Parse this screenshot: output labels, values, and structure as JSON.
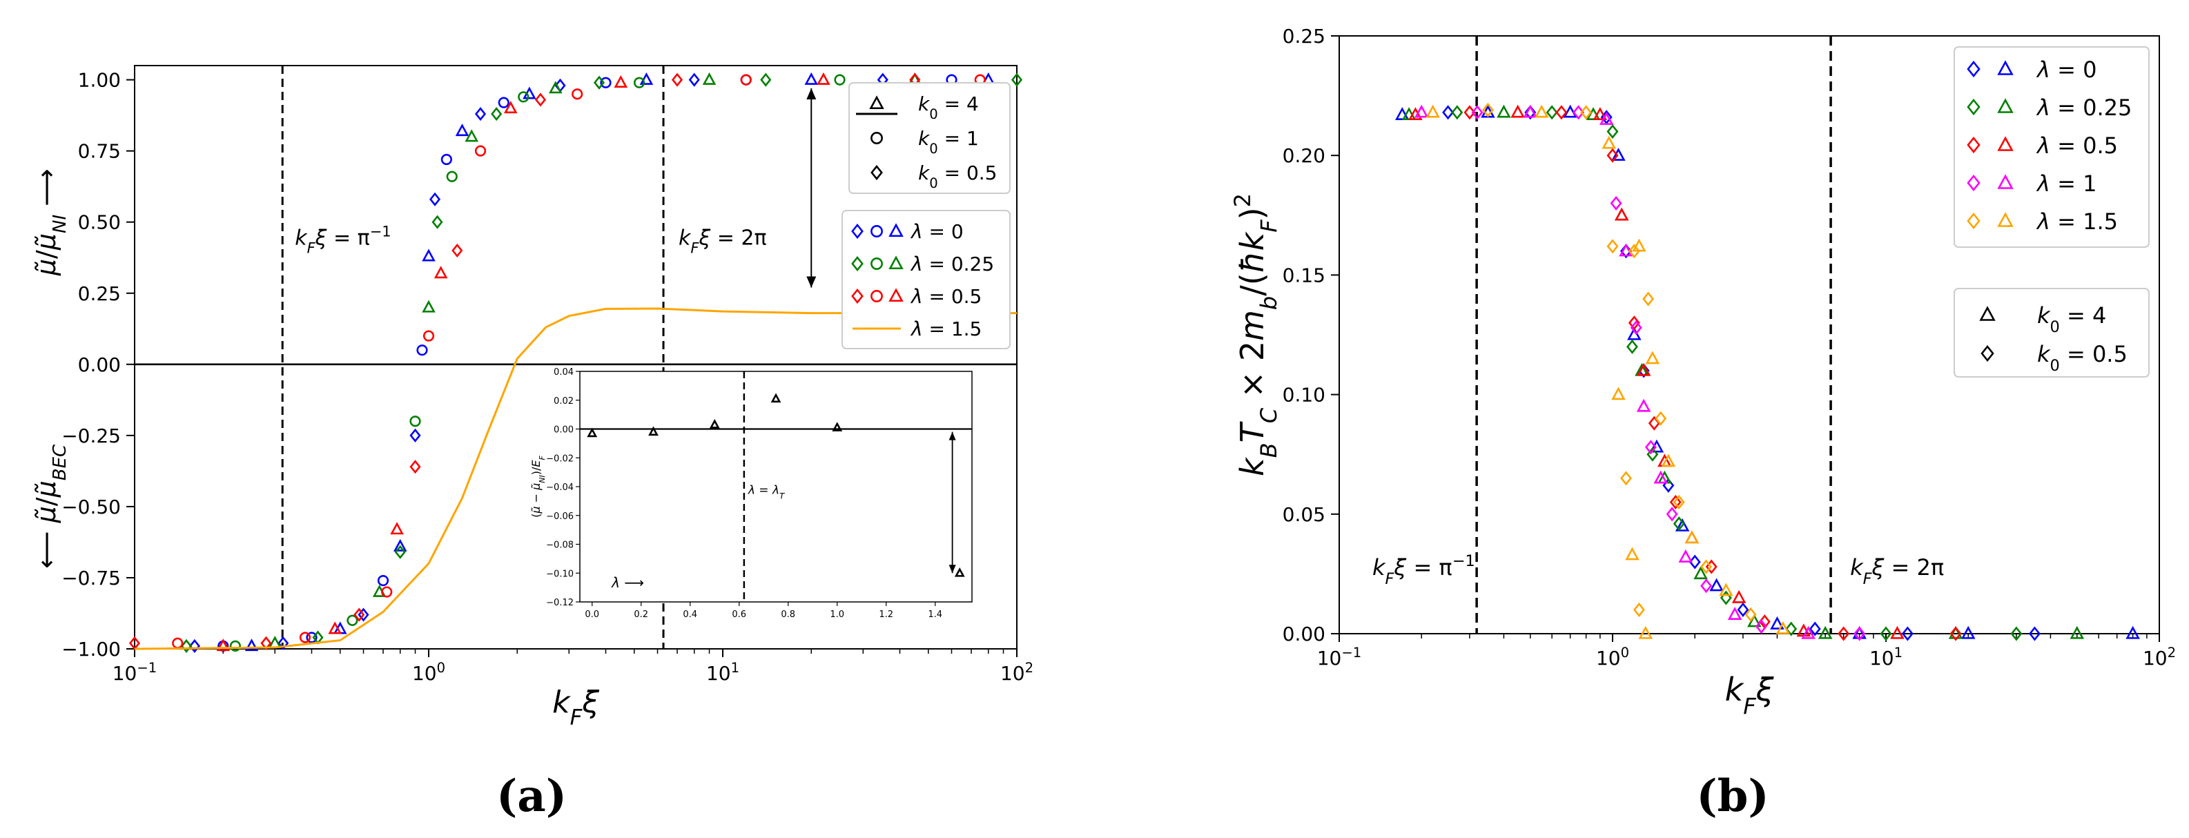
{
  "figure": {
    "panel_a_caption": "(a)",
    "panel_b_caption": "(b)"
  },
  "chart_data": [
    {
      "id": "panel_a",
      "type": "scatter",
      "x_scale": "log",
      "xlim": [
        0.1,
        100
      ],
      "ylim": [
        -1.0,
        1.05
      ],
      "xlabel": "k_F ξ",
      "ylabel_upper": "μ̃/μ̃_NI ⟶",
      "ylabel_lower": "⟵ μ̃/μ̃_BEC",
      "xticks": [
        {
          "v": 0.1,
          "base": "10",
          "exp": "−1"
        },
        {
          "v": 1,
          "base": "10",
          "exp": "0"
        },
        {
          "v": 10,
          "base": "10",
          "exp": "1"
        },
        {
          "v": 100,
          "base": "10",
          "exp": "2"
        }
      ],
      "yticks": [
        -1.0,
        -0.75,
        -0.5,
        -0.25,
        0.0,
        0.25,
        0.5,
        0.75,
        1.0
      ],
      "ytick_labels": [
        "−1.00",
        "−0.75",
        "−0.50",
        "−0.25",
        "0.00",
        "0.25",
        "0.50",
        "0.75",
        "1.00"
      ],
      "vlines": [
        {
          "x": 0.3183,
          "label": "k_F ξ = π⁻¹"
        },
        {
          "x": 6.283,
          "label": "k_F ξ = 2π"
        }
      ],
      "hline": 0.0,
      "arrow": {
        "x": 20,
        "y_top": 0.97,
        "y_bottom": 0.27
      },
      "legend_markers": [
        {
          "marker": "triangle",
          "label": "k₀ = 4"
        },
        {
          "marker": "circle",
          "label": "k₀ = 1"
        },
        {
          "marker": "diamond",
          "label": "k₀ = 0.5"
        }
      ],
      "series": [
        {
          "name": "λ = 0",
          "color": "#0000ff",
          "style": "markers",
          "points": [
            [
              0.16,
              -0.99
            ],
            [
              0.2,
              -0.99
            ],
            [
              0.25,
              -0.99
            ],
            [
              0.32,
              -0.98
            ],
            [
              0.4,
              -0.96
            ],
            [
              0.5,
              -0.93
            ],
            [
              0.6,
              -0.88
            ],
            [
              0.7,
              -0.76
            ],
            [
              0.8,
              -0.64
            ],
            [
              0.9,
              -0.25
            ],
            [
              0.95,
              0.05
            ],
            [
              1.0,
              0.38
            ],
            [
              1.05,
              0.58
            ],
            [
              1.15,
              0.72
            ],
            [
              1.3,
              0.82
            ],
            [
              1.5,
              0.88
            ],
            [
              1.8,
              0.92
            ],
            [
              2.2,
              0.95
            ],
            [
              2.8,
              0.98
            ],
            [
              4.0,
              0.99
            ],
            [
              5.5,
              1.0
            ],
            [
              8.0,
              1.0
            ],
            [
              12,
              1.0
            ],
            [
              20,
              1.0
            ],
            [
              35,
              1.0
            ],
            [
              60,
              1.0
            ],
            [
              80,
              1.0
            ]
          ]
        },
        {
          "name": "λ = 0.25",
          "color": "#008000",
          "style": "markers",
          "points": [
            [
              0.15,
              -0.99
            ],
            [
              0.22,
              -0.99
            ],
            [
              0.3,
              -0.98
            ],
            [
              0.42,
              -0.96
            ],
            [
              0.55,
              -0.9
            ],
            [
              0.68,
              -0.8
            ],
            [
              0.8,
              -0.66
            ],
            [
              0.9,
              -0.2
            ],
            [
              1.0,
              0.2
            ],
            [
              1.07,
              0.5
            ],
            [
              1.2,
              0.66
            ],
            [
              1.4,
              0.8
            ],
            [
              1.7,
              0.88
            ],
            [
              2.1,
              0.94
            ],
            [
              2.7,
              0.97
            ],
            [
              3.8,
              0.99
            ],
            [
              5.2,
              0.99
            ],
            [
              9.0,
              1.0
            ],
            [
              14,
              1.0
            ],
            [
              25,
              1.0
            ],
            [
              45,
              1.0
            ],
            [
              100,
              1.0
            ]
          ]
        },
        {
          "name": "λ = 0.5",
          "color": "#ff0000",
          "style": "markers",
          "points": [
            [
              0.1,
              -0.98
            ],
            [
              0.14,
              -0.98
            ],
            [
              0.2,
              -0.99
            ],
            [
              0.28,
              -0.98
            ],
            [
              0.38,
              -0.96
            ],
            [
              0.48,
              -0.93
            ],
            [
              0.58,
              -0.88
            ],
            [
              0.72,
              -0.8
            ],
            [
              0.78,
              -0.58
            ],
            [
              0.9,
              -0.36
            ],
            [
              1.0,
              0.1
            ],
            [
              1.1,
              0.32
            ],
            [
              1.25,
              0.4
            ],
            [
              1.5,
              0.75
            ],
            [
              1.9,
              0.9
            ],
            [
              2.4,
              0.93
            ],
            [
              3.2,
              0.95
            ],
            [
              4.5,
              0.99
            ],
            [
              7.0,
              1.0
            ],
            [
              12,
              1.0
            ],
            [
              22,
              1.0
            ],
            [
              45,
              1.0
            ],
            [
              75,
              1.0
            ]
          ]
        },
        {
          "name": "λ = 1.5",
          "color": "#ffa500",
          "style": "line",
          "points": [
            [
              0.1,
              -1.0
            ],
            [
              0.3,
              -0.995
            ],
            [
              0.5,
              -0.97
            ],
            [
              0.7,
              -0.87
            ],
            [
              1.0,
              -0.7
            ],
            [
              1.3,
              -0.47
            ],
            [
              1.6,
              -0.23
            ],
            [
              2.0,
              0.02
            ],
            [
              2.5,
              0.13
            ],
            [
              3.0,
              0.17
            ],
            [
              4.0,
              0.195
            ],
            [
              6.0,
              0.196
            ],
            [
              10,
              0.186
            ],
            [
              20,
              0.18
            ],
            [
              40,
              0.18
            ],
            [
              100,
              0.18
            ]
          ]
        }
      ],
      "inset": {
        "type": "scatter",
        "xlim": [
          -0.05,
          1.55
        ],
        "ylim": [
          -0.12,
          0.04
        ],
        "ylabel": "(μ̃ − μ̃_NI)/E_F",
        "xticks": [
          0.0,
          0.2,
          0.4,
          0.6,
          0.8,
          1.0,
          1.2,
          1.4
        ],
        "xtick_labels": [
          "0.0",
          "0.2",
          "0.4",
          "0.6",
          "0.8",
          "1.0",
          "1.2",
          "1.4"
        ],
        "yticks": [
          0.04,
          0.02,
          0.0,
          -0.02,
          -0.04,
          -0.06,
          -0.08,
          -0.1,
          -0.12
        ],
        "ytick_labels": [
          "0.04",
          "0.02",
          "0.00",
          "−0.02",
          "−0.04",
          "−0.06",
          "−0.08",
          "−0.10",
          "−0.12"
        ],
        "vline": {
          "x": 0.62,
          "label": "λ = λ_T"
        },
        "hline": 0.0,
        "arrow": {
          "x": 1.47,
          "y_top": -0.002,
          "y_bottom": -0.1
        },
        "xlabel_inline": "λ ⟶",
        "points": [
          [
            0.0,
            -0.003
          ],
          [
            0.25,
            -0.002
          ],
          [
            0.5,
            0.003
          ],
          [
            0.75,
            0.021
          ],
          [
            1.0,
            0.001
          ],
          [
            1.5,
            -0.1
          ]
        ]
      }
    },
    {
      "id": "panel_b",
      "type": "scatter",
      "x_scale": "log",
      "xlim": [
        0.1,
        100
      ],
      "ylim": [
        0.0,
        0.25
      ],
      "xlabel": "k_F ξ",
      "ylabel": "k_B T_C × 2m_b/(ħk_F)²",
      "xticks": [
        {
          "v": 0.1,
          "base": "10",
          "exp": "−1"
        },
        {
          "v": 1,
          "base": "10",
          "exp": "0"
        },
        {
          "v": 10,
          "base": "10",
          "exp": "1"
        },
        {
          "v": 100,
          "base": "10",
          "exp": "2"
        }
      ],
      "yticks": [
        0.0,
        0.05,
        0.1,
        0.15,
        0.2,
        0.25
      ],
      "ytick_labels": [
        "0.00",
        "0.05",
        "0.10",
        "0.15",
        "0.20",
        "0.25"
      ],
      "vlines": [
        {
          "x": 0.3183,
          "label": "k_F ξ = π⁻¹"
        },
        {
          "x": 6.283,
          "label": "k_F ξ = 2π"
        }
      ],
      "legend_markers": [
        {
          "marker": "triangle",
          "label": "k₀ = 4"
        },
        {
          "marker": "diamond",
          "label": "k₀ = 0.5"
        }
      ],
      "series": [
        {
          "name": "λ = 0",
          "color": "#0000ff",
          "points": [
            [
              0.17,
              0.217
            ],
            [
              0.25,
              0.218
            ],
            [
              0.35,
              0.218
            ],
            [
              0.5,
              0.218
            ],
            [
              0.7,
              0.218
            ],
            [
              0.95,
              0.216
            ],
            [
              1.05,
              0.2
            ],
            [
              1.12,
              0.16
            ],
            [
              1.2,
              0.125
            ],
            [
              1.3,
              0.11
            ],
            [
              1.45,
              0.078
            ],
            [
              1.6,
              0.062
            ],
            [
              1.8,
              0.045
            ],
            [
              2.0,
              0.03
            ],
            [
              2.4,
              0.02
            ],
            [
              3.0,
              0.01
            ],
            [
              4.0,
              0.004
            ],
            [
              5.5,
              0.002
            ],
            [
              8,
              0.0
            ],
            [
              12,
              0.0
            ],
            [
              20,
              0.0
            ],
            [
              35,
              0.0
            ],
            [
              80,
              0.0
            ]
          ]
        },
        {
          "name": "λ = 0.25",
          "color": "#008000",
          "points": [
            [
              0.18,
              0.217
            ],
            [
              0.27,
              0.218
            ],
            [
              0.4,
              0.218
            ],
            [
              0.6,
              0.218
            ],
            [
              0.85,
              0.217
            ],
            [
              1.0,
              0.21
            ],
            [
              1.08,
              0.175
            ],
            [
              1.18,
              0.12
            ],
            [
              1.28,
              0.11
            ],
            [
              1.4,
              0.075
            ],
            [
              1.55,
              0.065
            ],
            [
              1.75,
              0.046
            ],
            [
              2.1,
              0.025
            ],
            [
              2.6,
              0.015
            ],
            [
              3.3,
              0.005
            ],
            [
              4.5,
              0.002
            ],
            [
              6,
              0.0
            ],
            [
              10,
              0.0
            ],
            [
              18,
              0.0
            ],
            [
              30,
              0.0
            ],
            [
              50,
              0.0
            ]
          ]
        },
        {
          "name": "λ = 0.5",
          "color": "#ff0000",
          "points": [
            [
              0.19,
              0.217
            ],
            [
              0.3,
              0.218
            ],
            [
              0.45,
              0.218
            ],
            [
              0.65,
              0.218
            ],
            [
              0.9,
              0.217
            ],
            [
              1.0,
              0.2
            ],
            [
              1.08,
              0.175
            ],
            [
              1.2,
              0.13
            ],
            [
              1.3,
              0.11
            ],
            [
              1.42,
              0.088
            ],
            [
              1.55,
              0.072
            ],
            [
              1.7,
              0.055
            ],
            [
              1.95,
              0.04
            ],
            [
              2.3,
              0.028
            ],
            [
              2.9,
              0.015
            ],
            [
              3.6,
              0.005
            ],
            [
              5,
              0.001
            ],
            [
              7,
              0.0
            ],
            [
              11,
              0.0
            ],
            [
              18,
              0.0
            ]
          ]
        },
        {
          "name": "λ = 1",
          "color": "#ff00ff",
          "points": [
            [
              0.2,
              0.218
            ],
            [
              0.32,
              0.218
            ],
            [
              0.5,
              0.218
            ],
            [
              0.75,
              0.218
            ],
            [
              0.95,
              0.215
            ],
            [
              1.03,
              0.18
            ],
            [
              1.12,
              0.16
            ],
            [
              1.22,
              0.128
            ],
            [
              1.3,
              0.095
            ],
            [
              1.38,
              0.078
            ],
            [
              1.5,
              0.065
            ],
            [
              1.65,
              0.05
            ],
            [
              1.85,
              0.032
            ],
            [
              2.2,
              0.02
            ],
            [
              2.8,
              0.008
            ],
            [
              3.5,
              0.003
            ],
            [
              5.2,
              0.0
            ],
            [
              8,
              0.0
            ]
          ]
        },
        {
          "name": "λ = 1.5",
          "color": "#ffa500",
          "points": [
            [
              0.22,
              0.218
            ],
            [
              0.35,
              0.219
            ],
            [
              0.55,
              0.218
            ],
            [
              0.8,
              0.218
            ],
            [
              0.97,
              0.205
            ],
            [
              1.0,
              0.162
            ],
            [
              1.05,
              0.1
            ],
            [
              1.12,
              0.065
            ],
            [
              1.18,
              0.033
            ],
            [
              1.25,
              0.01
            ],
            [
              1.32,
              0.0
            ],
            [
              1.2,
              0.16
            ],
            [
              1.25,
              0.162
            ],
            [
              1.35,
              0.14
            ],
            [
              1.4,
              0.115
            ],
            [
              1.5,
              0.09
            ],
            [
              1.6,
              0.072
            ],
            [
              1.75,
              0.055
            ],
            [
              1.95,
              0.04
            ],
            [
              2.2,
              0.028
            ],
            [
              2.6,
              0.018
            ],
            [
              3.2,
              0.008
            ],
            [
              4.2,
              0.002
            ]
          ]
        }
      ]
    }
  ]
}
